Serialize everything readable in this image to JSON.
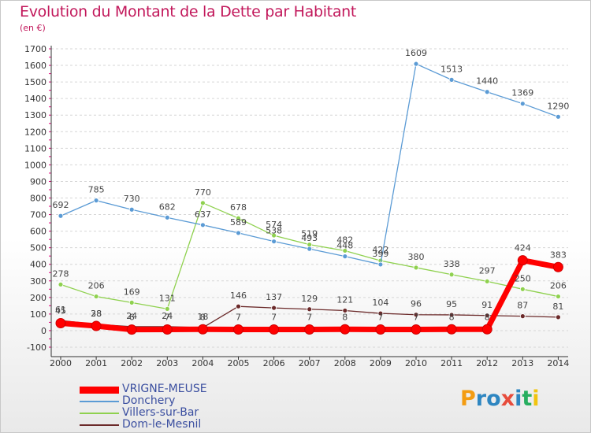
{
  "chart_data": {
    "type": "line",
    "title": "Evolution du Montant de la Dette par Habitant",
    "subtitle": "(en €)",
    "x": [
      "2000",
      "2001",
      "2002",
      "2003",
      "2004",
      "2005",
      "2006",
      "2007",
      "2008",
      "2009",
      "2010",
      "2011",
      "2012",
      "2013",
      "2014"
    ],
    "ylim": [
      -100,
      1700
    ],
    "yticks": [
      -100,
      0,
      100,
      200,
      300,
      400,
      500,
      600,
      700,
      800,
      900,
      1000,
      1100,
      1200,
      1300,
      1400,
      1500,
      1600,
      1700
    ],
    "grid": "horizontal",
    "legend_position": "bottom-left",
    "series": [
      {
        "name": "VRIGNE-MEUSE",
        "color": "#ff0000",
        "values": [
          45,
          28,
          6,
          7,
          8,
          7,
          7,
          7,
          8,
          7,
          7,
          8,
          8,
          424,
          383
        ],
        "labels": [
          "45",
          "28",
          "6",
          "7",
          "8",
          "7",
          "7",
          "7",
          "8",
          "7",
          "7",
          "8",
          "8",
          "424",
          "383"
        ]
      },
      {
        "name": "Donchery",
        "color": "#5b9bd5",
        "values": [
          692,
          785,
          730,
          682,
          637,
          589,
          538,
          493,
          448,
          399,
          1609,
          1513,
          1440,
          1369,
          1290
        ],
        "labels": [
          "692",
          "785",
          "730",
          "682",
          "637",
          "589",
          "538",
          "493",
          "448",
          "399",
          "1609",
          "1513",
          "1440",
          "1369",
          "1290"
        ]
      },
      {
        "name": "Villers-sur-Bar",
        "color": "#8fd14f",
        "values": [
          278,
          206,
          169,
          131,
          770,
          678,
          574,
          519,
          482,
          422,
          380,
          338,
          297,
          250,
          206
        ],
        "labels": [
          "278",
          "206",
          "169",
          "131",
          "770",
          "678",
          "574",
          "519",
          "482",
          "422",
          "380",
          "338",
          "297",
          "250",
          "206"
        ]
      },
      {
        "name": "Dom-le-Mesnil",
        "color": "#6b2a2a",
        "values": [
          61,
          38,
          24,
          24,
          18,
          146,
          137,
          129,
          121,
          104,
          96,
          95,
          91,
          87,
          81
        ],
        "labels": [
          "61",
          "38",
          "24",
          "24",
          "18",
          "146",
          "137",
          "129",
          "121",
          "104",
          "96",
          "95",
          "91",
          "87",
          "81"
        ]
      }
    ]
  },
  "brand": {
    "logo_text": "Proxiti"
  }
}
